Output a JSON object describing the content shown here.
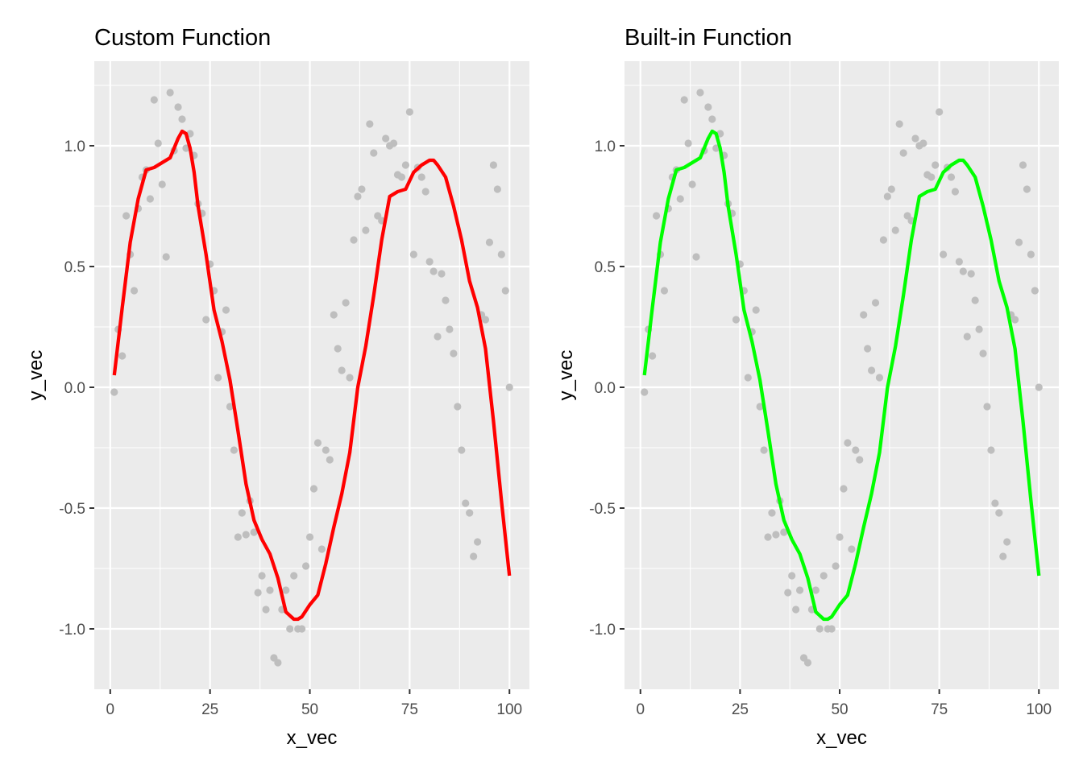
{
  "chart_data": [
    {
      "type": "scatter",
      "title": "Custom Function",
      "xlabel": "x_vec",
      "ylabel": "y_vec",
      "xlim": [
        -4,
        105
      ],
      "ylim": [
        -1.25,
        1.35
      ],
      "xticks": [
        0,
        25,
        50,
        75,
        100
      ],
      "xtick_labels": [
        "0",
        "25",
        "50",
        "75",
        "100"
      ],
      "yticks": [
        -1.0,
        -0.5,
        0.0,
        0.5,
        1.0
      ],
      "ytick_labels": [
        "-1.0",
        "-0.5",
        "0.0",
        "0.5",
        "1.0"
      ],
      "grid": true,
      "series": [
        {
          "name": "points",
          "kind": "scatter",
          "color": "#bebebe",
          "x": [
            1,
            2,
            3,
            4,
            5,
            6,
            7,
            8,
            9,
            10,
            11,
            12,
            13,
            14,
            15,
            16,
            17,
            18,
            19,
            20,
            21,
            22,
            23,
            24,
            25,
            26,
            27,
            28,
            29,
            30,
            31,
            32,
            33,
            34,
            35,
            36,
            37,
            38,
            39,
            40,
            41,
            42,
            43,
            44,
            45,
            46,
            47,
            48,
            49,
            50,
            51,
            52,
            53,
            54,
            55,
            56,
            57,
            58,
            59,
            60,
            61,
            62,
            63,
            64,
            65,
            66,
            67,
            68,
            69,
            70,
            71,
            72,
            73,
            74,
            75,
            76,
            77,
            78,
            79,
            80,
            81,
            82,
            83,
            84,
            85,
            86,
            87,
            88,
            89,
            90,
            91,
            92,
            93,
            94,
            95,
            96,
            97,
            98,
            99,
            100
          ],
          "y": [
            -0.02,
            0.24,
            0.13,
            0.71,
            0.55,
            0.4,
            0.74,
            0.87,
            0.9,
            0.78,
            1.19,
            1.01,
            0.84,
            0.54,
            1.22,
            0.98,
            1.16,
            1.11,
            0.99,
            1.05,
            0.96,
            0.76,
            0.72,
            0.28,
            0.51,
            0.4,
            0.04,
            0.23,
            0.32,
            -0.08,
            -0.26,
            -0.62,
            -0.52,
            -0.61,
            -0.47,
            -0.6,
            -0.85,
            -0.78,
            -0.92,
            -0.84,
            -1.12,
            -1.14,
            -0.92,
            -0.84,
            -1.0,
            -0.78,
            -1.0,
            -1.0,
            -0.74,
            -0.62,
            -0.42,
            -0.23,
            -0.67,
            -0.26,
            -0.3,
            0.3,
            0.16,
            0.07,
            0.35,
            0.04,
            0.61,
            0.79,
            0.82,
            0.65,
            1.09,
            0.97,
            0.71,
            0.69,
            1.03,
            1.0,
            1.01,
            0.88,
            0.87,
            0.92,
            1.14,
            0.55,
            0.91,
            0.87,
            0.81,
            0.52,
            0.48,
            0.21,
            0.47,
            0.36,
            0.24,
            0.14,
            -0.08,
            -0.26,
            -0.48,
            -0.52,
            -0.7,
            -0.64,
            0.3,
            0.28,
            0.6,
            0.92,
            0.82,
            0.55,
            0.4,
            0.0
          ]
        },
        {
          "name": "smooth",
          "kind": "line",
          "color": "#ff0000",
          "x": [
            1,
            3,
            5,
            7,
            9,
            11,
            13,
            15,
            16,
            17,
            18,
            19,
            20,
            21,
            22,
            24,
            26,
            28,
            30,
            32,
            34,
            36,
            38,
            40,
            42,
            44,
            46,
            47,
            48,
            50,
            52,
            54,
            56,
            58,
            60,
            62,
            64,
            66,
            68,
            70,
            72,
            74,
            76,
            78,
            80,
            81,
            82,
            84,
            86,
            88,
            90,
            92,
            94,
            96,
            98,
            100
          ],
          "y": [
            0.05,
            0.33,
            0.6,
            0.78,
            0.9,
            0.91,
            0.93,
            0.95,
            0.99,
            1.03,
            1.06,
            1.05,
            0.99,
            0.89,
            0.75,
            0.55,
            0.32,
            0.19,
            0.03,
            -0.18,
            -0.4,
            -0.55,
            -0.63,
            -0.69,
            -0.79,
            -0.93,
            -0.96,
            -0.96,
            -0.95,
            -0.9,
            -0.86,
            -0.73,
            -0.58,
            -0.44,
            -0.27,
            0.0,
            0.17,
            0.38,
            0.61,
            0.79,
            0.81,
            0.82,
            0.89,
            0.92,
            0.94,
            0.94,
            0.92,
            0.87,
            0.75,
            0.61,
            0.44,
            0.33,
            0.16,
            -0.14,
            -0.47,
            -0.78
          ]
        }
      ]
    },
    {
      "type": "scatter",
      "title": "Built-in Function",
      "xlabel": "x_vec",
      "ylabel": "y_vec",
      "xlim": [
        -4,
        105
      ],
      "ylim": [
        -1.25,
        1.35
      ],
      "xticks": [
        0,
        25,
        50,
        75,
        100
      ],
      "xtick_labels": [
        "0",
        "25",
        "50",
        "75",
        "100"
      ],
      "yticks": [
        -1.0,
        -0.5,
        0.0,
        0.5,
        1.0
      ],
      "ytick_labels": [
        "-1.0",
        "-0.5",
        "0.0",
        "0.5",
        "1.0"
      ],
      "grid": true,
      "series": [
        {
          "name": "points",
          "kind": "scatter",
          "color": "#bebebe",
          "x": [
            1,
            2,
            3,
            4,
            5,
            6,
            7,
            8,
            9,
            10,
            11,
            12,
            13,
            14,
            15,
            16,
            17,
            18,
            19,
            20,
            21,
            22,
            23,
            24,
            25,
            26,
            27,
            28,
            29,
            30,
            31,
            32,
            33,
            34,
            35,
            36,
            37,
            38,
            39,
            40,
            41,
            42,
            43,
            44,
            45,
            46,
            47,
            48,
            49,
            50,
            51,
            52,
            53,
            54,
            55,
            56,
            57,
            58,
            59,
            60,
            61,
            62,
            63,
            64,
            65,
            66,
            67,
            68,
            69,
            70,
            71,
            72,
            73,
            74,
            75,
            76,
            77,
            78,
            79,
            80,
            81,
            82,
            83,
            84,
            85,
            86,
            87,
            88,
            89,
            90,
            91,
            92,
            93,
            94,
            95,
            96,
            97,
            98,
            99,
            100
          ],
          "y": [
            -0.02,
            0.24,
            0.13,
            0.71,
            0.55,
            0.4,
            0.74,
            0.87,
            0.9,
            0.78,
            1.19,
            1.01,
            0.84,
            0.54,
            1.22,
            0.98,
            1.16,
            1.11,
            0.99,
            1.05,
            0.96,
            0.76,
            0.72,
            0.28,
            0.51,
            0.4,
            0.04,
            0.23,
            0.32,
            -0.08,
            -0.26,
            -0.62,
            -0.52,
            -0.61,
            -0.47,
            -0.6,
            -0.85,
            -0.78,
            -0.92,
            -0.84,
            -1.12,
            -1.14,
            -0.92,
            -0.84,
            -1.0,
            -0.78,
            -1.0,
            -1.0,
            -0.74,
            -0.62,
            -0.42,
            -0.23,
            -0.67,
            -0.26,
            -0.3,
            0.3,
            0.16,
            0.07,
            0.35,
            0.04,
            0.61,
            0.79,
            0.82,
            0.65,
            1.09,
            0.97,
            0.71,
            0.69,
            1.03,
            1.0,
            1.01,
            0.88,
            0.87,
            0.92,
            1.14,
            0.55,
            0.91,
            0.87,
            0.81,
            0.52,
            0.48,
            0.21,
            0.47,
            0.36,
            0.24,
            0.14,
            -0.08,
            -0.26,
            -0.48,
            -0.52,
            -0.7,
            -0.64,
            0.3,
            0.28,
            0.6,
            0.92,
            0.82,
            0.55,
            0.4,
            0.0
          ]
        },
        {
          "name": "smooth",
          "kind": "line",
          "color": "#00ff00",
          "x": [
            1,
            3,
            5,
            7,
            9,
            11,
            13,
            15,
            16,
            17,
            18,
            19,
            20,
            21,
            22,
            24,
            26,
            28,
            30,
            32,
            34,
            36,
            38,
            40,
            42,
            44,
            46,
            47,
            48,
            50,
            52,
            54,
            56,
            58,
            60,
            62,
            64,
            66,
            68,
            70,
            72,
            74,
            76,
            78,
            80,
            81,
            82,
            84,
            86,
            88,
            90,
            92,
            94,
            96,
            98,
            100
          ],
          "y": [
            0.05,
            0.33,
            0.6,
            0.78,
            0.9,
            0.91,
            0.93,
            0.95,
            0.99,
            1.03,
            1.06,
            1.05,
            0.99,
            0.89,
            0.75,
            0.55,
            0.32,
            0.19,
            0.03,
            -0.18,
            -0.4,
            -0.55,
            -0.63,
            -0.69,
            -0.79,
            -0.93,
            -0.96,
            -0.96,
            -0.95,
            -0.9,
            -0.86,
            -0.73,
            -0.58,
            -0.44,
            -0.27,
            0.0,
            0.17,
            0.38,
            0.61,
            0.79,
            0.81,
            0.82,
            0.89,
            0.92,
            0.94,
            0.94,
            0.92,
            0.87,
            0.75,
            0.61,
            0.44,
            0.33,
            0.16,
            -0.14,
            -0.47,
            -0.78
          ]
        }
      ]
    }
  ]
}
